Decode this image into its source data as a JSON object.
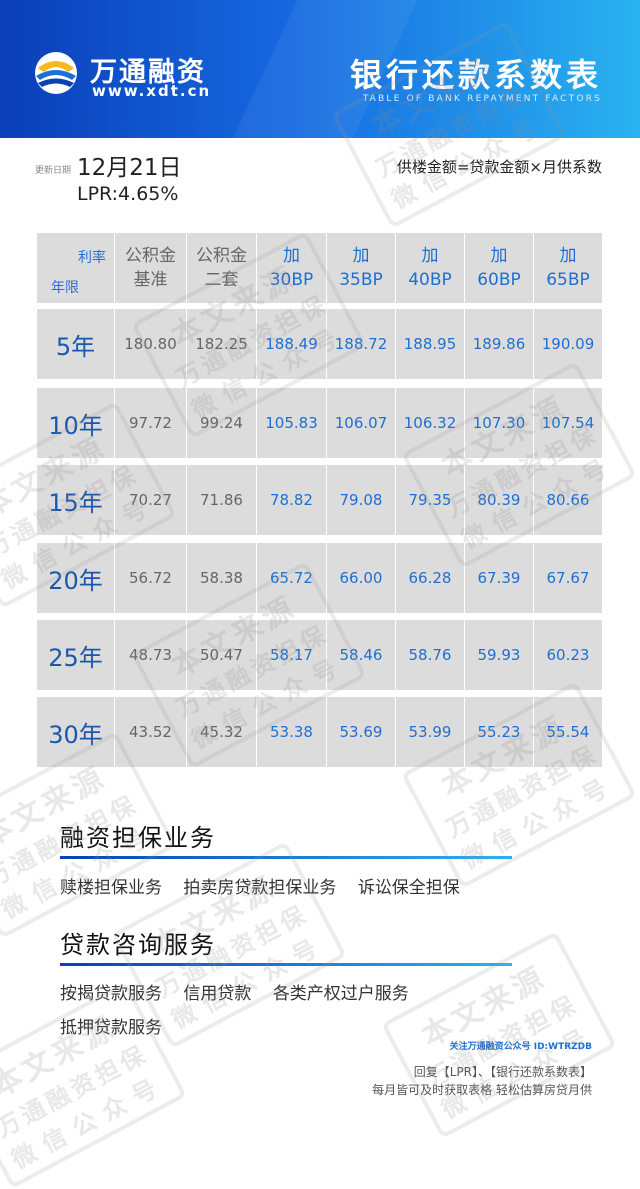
{
  "brand": {
    "name": "万通融资",
    "url": "www.xdt.cn"
  },
  "title": {
    "main": "银行还款系数表",
    "subtitle_en": "TABLE OF BANK REPAYMENT FACTORS"
  },
  "info": {
    "update_label": "更新日期",
    "update_date": "12月21日",
    "lpr": "LPR:4.65%",
    "formula": "供楼金额=贷款金额×月供系数"
  },
  "table": {
    "corner_rate": "利率",
    "corner_year": "年限",
    "headers": [
      [
        "公积金",
        "基准"
      ],
      [
        "公积金",
        "二套"
      ],
      [
        "加",
        "30BP"
      ],
      [
        "加",
        "35BP"
      ],
      [
        "加",
        "40BP"
      ],
      [
        "加",
        "60BP"
      ],
      [
        "加",
        "65BP"
      ]
    ],
    "rows": [
      {
        "year": "5年",
        "values": [
          "180.80",
          "182.25",
          "188.49",
          "188.72",
          "188.95",
          "189.86",
          "190.09"
        ]
      },
      {
        "year": "10年",
        "values": [
          "97.72",
          "99.24",
          "105.83",
          "106.07",
          "106.32",
          "107.30",
          "107.54"
        ]
      },
      {
        "year": "15年",
        "values": [
          "70.27",
          "71.86",
          "78.82",
          "79.08",
          "79.35",
          "80.39",
          "80.66"
        ]
      },
      {
        "year": "20年",
        "values": [
          "56.72",
          "58.38",
          "65.72",
          "66.00",
          "66.28",
          "67.39",
          "67.67"
        ]
      },
      {
        "year": "25年",
        "values": [
          "48.73",
          "50.47",
          "58.17",
          "58.46",
          "58.76",
          "59.93",
          "60.23"
        ]
      },
      {
        "year": "30年",
        "values": [
          "43.52",
          "45.32",
          "53.38",
          "53.69",
          "53.99",
          "55.23",
          "55.54"
        ]
      }
    ]
  },
  "services": {
    "guarantee_title": "融资担保业务",
    "guarantee_items": [
      "赎楼担保业务",
      "拍卖房贷款担保业务",
      "诉讼保全担保"
    ],
    "loan_title": "贷款咨询服务",
    "loan_items_line1": [
      "按揭贷款服务",
      "信用贷款",
      "各类产权过户服务"
    ],
    "loan_items_line2": [
      "抵押贷款服务"
    ]
  },
  "footer": {
    "follow": "关注万通融资公众号 ID:WTRZDB",
    "reply": "回复【LPR】、【银行还款系数表】",
    "note": "每月皆可及时获取表格    轻松估算房贷月供"
  },
  "watermark": {
    "line1": "本文来源",
    "line2": "万通融资担保",
    "line3": "微信公众号"
  },
  "colors": {
    "brand_blue": "#0a3fb8",
    "accent_blue": "#1e6fd2",
    "light_blue": "#29b3f0",
    "table_bg": "#dcdcdc"
  }
}
